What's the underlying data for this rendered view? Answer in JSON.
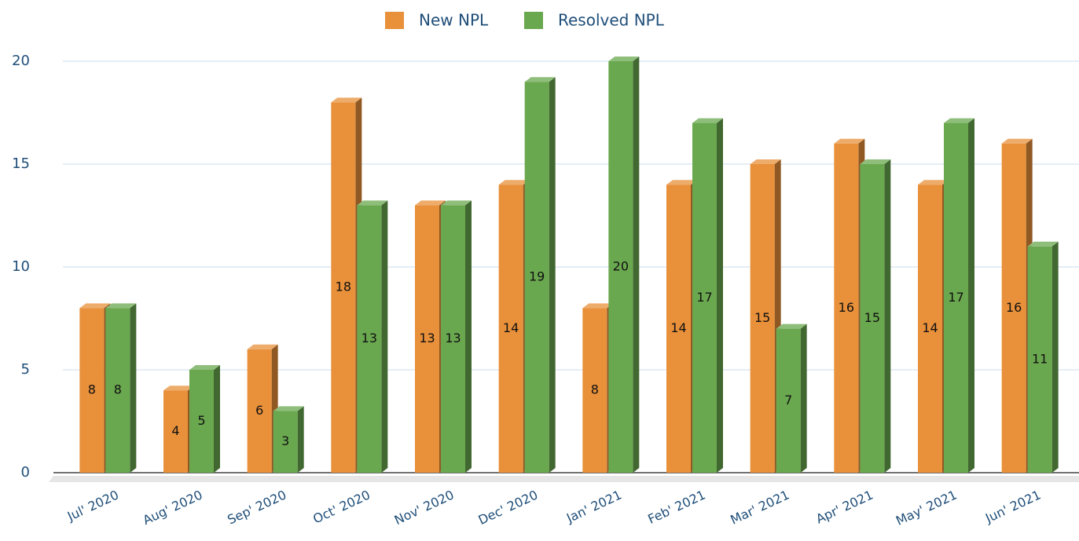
{
  "chart_data": {
    "type": "bar3d",
    "categories": [
      "Jul' 2020",
      "Aug' 2020",
      "Sep' 2020",
      "Oct' 2020",
      "Nov' 2020",
      "Dec' 2020",
      "Jan' 2021",
      "Feb' 2021",
      "Mar' 2021",
      "Apr' 2021",
      "May' 2021",
      "Jun' 2021"
    ],
    "series": [
      {
        "name": "New NPL",
        "color": "#e8903a",
        "values": [
          8,
          4,
          6,
          18,
          13,
          14,
          8,
          14,
          15,
          16,
          14,
          16
        ]
      },
      {
        "name": "Resolved NPL",
        "color": "#6aa84f",
        "values": [
          8,
          5,
          3,
          13,
          13,
          19,
          20,
          17,
          7,
          15,
          17,
          11
        ]
      }
    ],
    "ylim": [
      0,
      20
    ],
    "yticks": [
      0,
      5,
      10,
      15,
      20
    ],
    "grid": true,
    "legend": "top"
  }
}
